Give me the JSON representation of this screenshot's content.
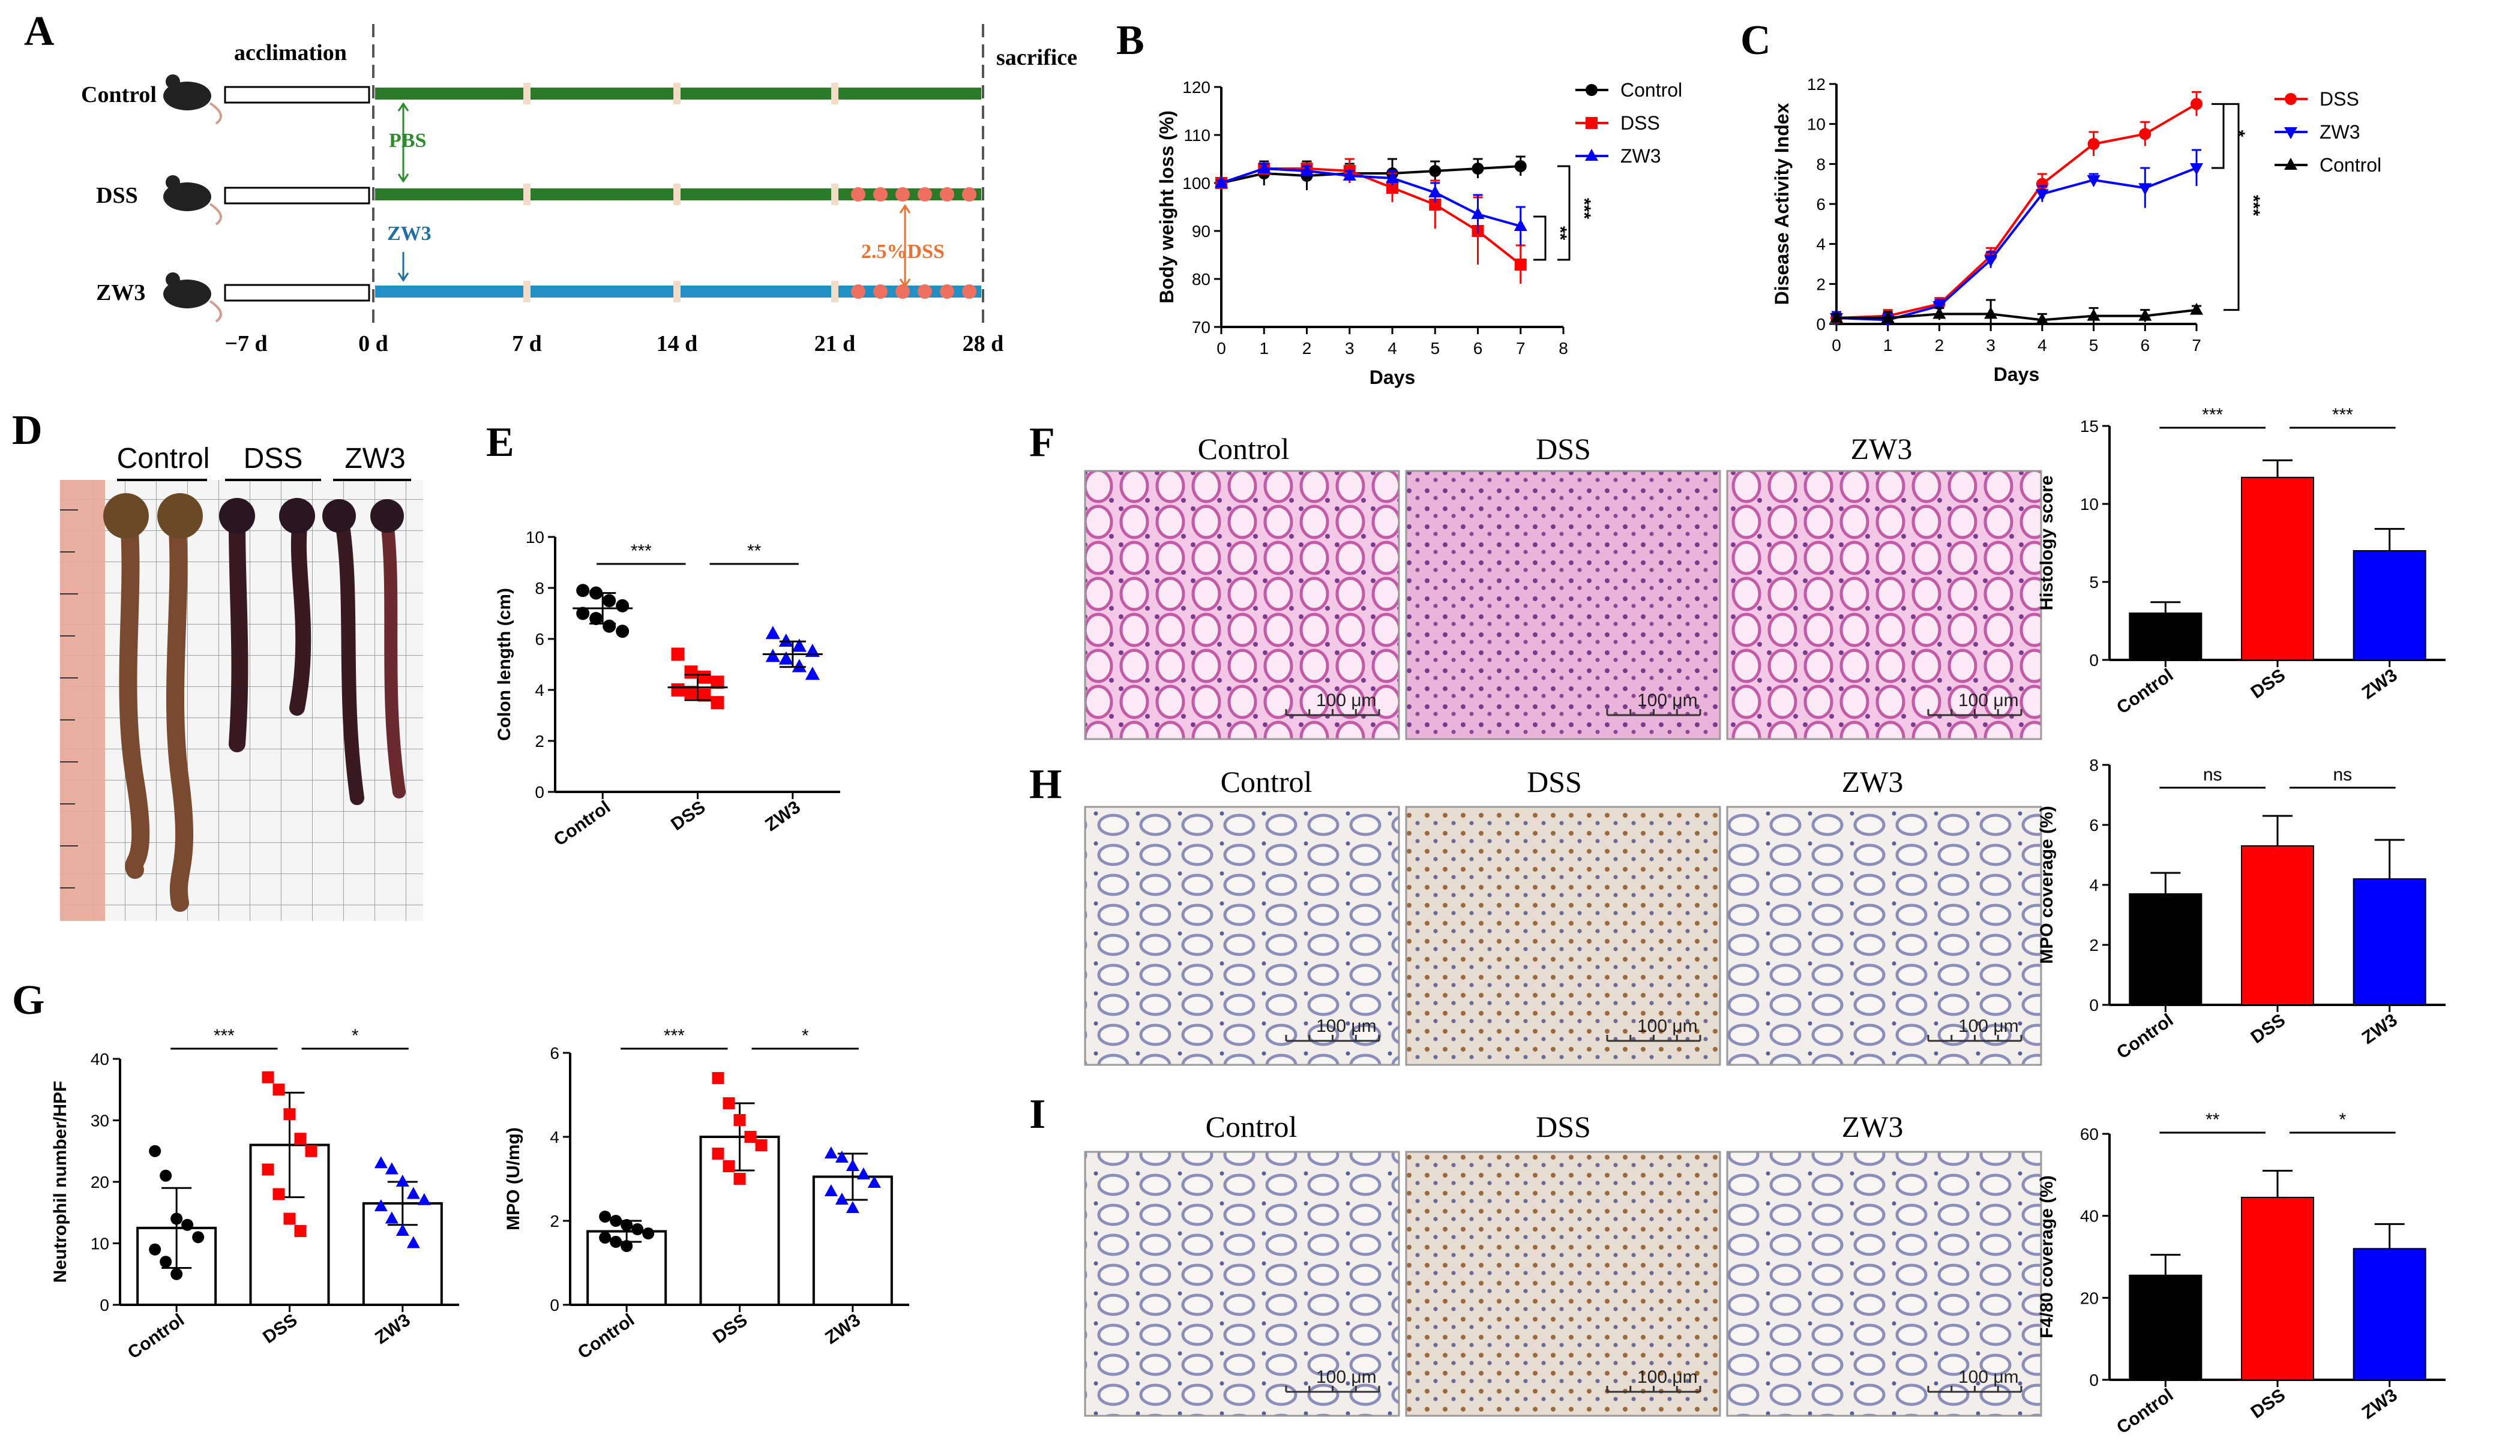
{
  "panel_labels": {
    "A": "A",
    "B": "B",
    "C": "C",
    "D": "D",
    "E": "E",
    "F": "F",
    "G": "G",
    "H": "H",
    "I": "I"
  },
  "colors": {
    "control": "#000000",
    "dss": "#ff0000",
    "zw3": "#0000ff",
    "pbs_green": "#2e8b2e",
    "zw3_blue": "#1f8fc4",
    "dss_orange": "#f07030",
    "timeline_green": "#2a7a2a",
    "timeline_blue": "#1f8fc4"
  },
  "schematic": {
    "rows": [
      {
        "label": "Control",
        "icon": "mouse-icon",
        "bar": "green"
      },
      {
        "label": "DSS",
        "icon": "mouse-icon",
        "bar": "green"
      },
      {
        "label": "ZW3",
        "icon": "mouse-icon",
        "bar": "blue"
      }
    ],
    "acclimation": "acclimation",
    "sacrifice": "sacrifice",
    "pbs": "PBS",
    "zw3": "ZW3",
    "dss": "2.5%DSS",
    "days": [
      "−7 d",
      "0 d",
      "7 d",
      "14 d",
      "21 d",
      "28 d"
    ]
  },
  "chart_data": [
    {
      "id": "B",
      "type": "line",
      "xlabel": "Days",
      "ylabel": "Body weight loss (%)",
      "xlim": [
        0,
        8
      ],
      "ylim": [
        70,
        120
      ],
      "xticks": [
        0,
        1,
        2,
        3,
        4,
        5,
        6,
        7,
        8
      ],
      "yticks": [
        70,
        80,
        90,
        100,
        110,
        120
      ],
      "series": [
        {
          "name": "Control",
          "color": "#000000",
          "marker": "circle",
          "x": [
            0,
            1,
            2,
            3,
            4,
            5,
            6,
            7
          ],
          "y": [
            100,
            102,
            101.5,
            102,
            102,
            102.5,
            103,
            103.5
          ],
          "err": [
            0.5,
            2.5,
            3,
            2,
            3,
            2,
            2,
            2
          ]
        },
        {
          "name": "DSS",
          "color": "#ff0000",
          "marker": "square",
          "x": [
            0,
            1,
            2,
            3,
            4,
            5,
            6,
            7
          ],
          "y": [
            100,
            103,
            103,
            102.5,
            99,
            95.5,
            90,
            83
          ],
          "err": [
            0.5,
            1,
            1,
            2.5,
            3,
            5,
            7,
            4
          ]
        },
        {
          "name": "ZW3",
          "color": "#0000ff",
          "marker": "triangle",
          "x": [
            0,
            1,
            2,
            3,
            4,
            5,
            6,
            7
          ],
          "y": [
            100,
            103,
            102.5,
            101.5,
            101,
            98,
            93.5,
            91
          ],
          "err": [
            0.5,
            1,
            1,
            1,
            1.5,
            2,
            4,
            4
          ]
        }
      ],
      "sig": [
        "**",
        "***"
      ]
    },
    {
      "id": "C",
      "type": "line",
      "xlabel": "Days",
      "ylabel": "Disease Activity Index",
      "xlim": [
        0,
        7
      ],
      "ylim": [
        0,
        12
      ],
      "xticks": [
        0,
        1,
        2,
        3,
        4,
        5,
        6,
        7
      ],
      "yticks": [
        0,
        2,
        4,
        6,
        8,
        10,
        12
      ],
      "series": [
        {
          "name": "DSS",
          "color": "#ff0000",
          "marker": "circle",
          "x": [
            0,
            1,
            2,
            3,
            4,
            5,
            6,
            7
          ],
          "y": [
            0.3,
            0.4,
            1,
            3.4,
            7,
            9,
            9.5,
            11
          ],
          "err": [
            0.3,
            0.3,
            0.3,
            0.4,
            0.5,
            0.6,
            0.6,
            0.6
          ]
        },
        {
          "name": "ZW3",
          "color": "#0000ff",
          "marker": "tridown",
          "x": [
            0,
            1,
            2,
            3,
            4,
            5,
            6,
            7
          ],
          "y": [
            0.3,
            0.2,
            0.9,
            3.2,
            6.5,
            7.2,
            6.8,
            7.8
          ],
          "err": [
            0.3,
            0.3,
            0.3,
            0.4,
            0.4,
            0.3,
            1,
            0.9
          ]
        },
        {
          "name": "Control",
          "color": "#000000",
          "marker": "triangle",
          "x": [
            0,
            1,
            2,
            3,
            4,
            5,
            6,
            7
          ],
          "y": [
            0.3,
            0.3,
            0.5,
            0.5,
            0.2,
            0.4,
            0.4,
            0.7
          ],
          "err": [
            0.2,
            0.3,
            0.3,
            0.7,
            0.3,
            0.4,
            0.3,
            0.2
          ]
        }
      ],
      "sig": [
        "*",
        "***"
      ]
    },
    {
      "id": "E",
      "type": "scatter",
      "ylabel": "Colon length (cm)",
      "ylim": [
        0,
        10
      ],
      "yticks": [
        0,
        2,
        4,
        6,
        8,
        10
      ],
      "categories": [
        "Control",
        "DSS",
        "ZW3"
      ],
      "groups": [
        {
          "name": "Control",
          "color": "#000000",
          "marker": "circle",
          "mean": 7.2,
          "sd": 0.6,
          "points": [
            7.9,
            7.8,
            7.5,
            7.3,
            7.0,
            6.8,
            6.5,
            6.3
          ]
        },
        {
          "name": "DSS",
          "color": "#ff0000",
          "marker": "square",
          "mean": 4.1,
          "sd": 0.5,
          "points": [
            5.4,
            4.7,
            4.5,
            4.3,
            4.0,
            3.9,
            3.8,
            3.5
          ]
        },
        {
          "name": "ZW3",
          "color": "#0000ff",
          "marker": "triangle",
          "mean": 5.4,
          "sd": 0.5,
          "points": [
            6.2,
            5.9,
            5.7,
            5.5,
            5.3,
            5.2,
            4.9,
            4.6
          ]
        }
      ],
      "sig": [
        {
          "from": 0,
          "to": 1,
          "text": "***"
        },
        {
          "from": 1,
          "to": 2,
          "text": "**"
        }
      ]
    },
    {
      "id": "F",
      "type": "bar",
      "ylabel": "Histology score",
      "ylim": [
        0,
        15
      ],
      "yticks": [
        0,
        5,
        10,
        15
      ],
      "categories": [
        "Control",
        "DSS",
        "ZW3"
      ],
      "values": [
        3,
        11.7,
        7
      ],
      "err": [
        0.7,
        1.1,
        1.4
      ],
      "colors": [
        "#000000",
        "#ff0000",
        "#0000ff"
      ],
      "sig": [
        {
          "from": 0,
          "to": 1,
          "text": "***"
        },
        {
          "from": 1,
          "to": 2,
          "text": "***"
        }
      ]
    },
    {
      "id": "H",
      "type": "bar",
      "ylabel": "MPO coverage (%)",
      "ylim": [
        0,
        8
      ],
      "yticks": [
        0,
        2,
        4,
        6,
        8
      ],
      "categories": [
        "Control",
        "DSS",
        "ZW3"
      ],
      "values": [
        3.7,
        5.3,
        4.2
      ],
      "err": [
        0.7,
        1.0,
        1.3
      ],
      "colors": [
        "#000000",
        "#ff0000",
        "#0000ff"
      ],
      "sig": [
        {
          "from": 0,
          "to": 1,
          "text": "ns"
        },
        {
          "from": 1,
          "to": 2,
          "text": "ns"
        }
      ]
    },
    {
      "id": "I",
      "type": "bar",
      "ylabel": "F4/80 coverage (%)",
      "ylim": [
        0,
        60
      ],
      "yticks": [
        0,
        20,
        40,
        60
      ],
      "categories": [
        "Control",
        "DSS",
        "ZW3"
      ],
      "values": [
        25.5,
        44.5,
        32
      ],
      "err": [
        5,
        6.5,
        6
      ],
      "colors": [
        "#000000",
        "#ff0000",
        "#0000ff"
      ],
      "sig": [
        {
          "from": 0,
          "to": 1,
          "text": "**"
        },
        {
          "from": 1,
          "to": 2,
          "text": "*"
        }
      ]
    },
    {
      "id": "G1",
      "type": "bar",
      "ylabel": "Neutrophil number/HPF",
      "ylim": [
        0,
        40
      ],
      "yticks": [
        0,
        10,
        20,
        30,
        40
      ],
      "categories": [
        "Control",
        "DSS",
        "ZW3"
      ],
      "values": [
        12.5,
        26,
        16.5
      ],
      "err": [
        6.5,
        8.5,
        3.5
      ],
      "colors": [
        "#ffffff",
        "#ffffff",
        "#ffffff"
      ],
      "point_colors": [
        "#000000",
        "#ff0000",
        "#0000ff"
      ],
      "markers": [
        "circle",
        "square",
        "triangle"
      ],
      "points": [
        [
          25,
          21,
          14,
          13,
          11,
          9,
          7,
          5
        ],
        [
          37,
          35,
          31,
          27,
          25,
          22,
          18,
          14,
          12
        ],
        [
          23,
          22,
          20,
          18,
          17,
          16,
          14,
          12,
          10
        ]
      ],
      "sig": [
        {
          "from": 0,
          "to": 1,
          "text": "***"
        },
        {
          "from": 1,
          "to": 2,
          "text": "*"
        }
      ]
    },
    {
      "id": "G2",
      "type": "bar",
      "ylabel": "MPO (U/mg)",
      "ylim": [
        0,
        6
      ],
      "yticks": [
        0,
        2,
        4,
        6
      ],
      "categories": [
        "Control",
        "DSS",
        "ZW3"
      ],
      "values": [
        1.75,
        4.0,
        3.05
      ],
      "err": [
        0.25,
        0.8,
        0.55
      ],
      "colors": [
        "#ffffff",
        "#ffffff",
        "#ffffff"
      ],
      "point_colors": [
        "#000000",
        "#ff0000",
        "#0000ff"
      ],
      "markers": [
        "circle",
        "square",
        "triangle"
      ],
      "points": [
        [
          2.1,
          2.0,
          1.9,
          1.8,
          1.7,
          1.6,
          1.5,
          1.4
        ],
        [
          5.4,
          4.8,
          4.4,
          4.0,
          3.8,
          3.6,
          3.3,
          3.0
        ],
        [
          3.6,
          3.5,
          3.3,
          3.1,
          2.9,
          2.7,
          2.5,
          2.3
        ]
      ],
      "sig": [
        {
          "from": 0,
          "to": 1,
          "text": "***"
        },
        {
          "from": 1,
          "to": 2,
          "text": "*"
        }
      ]
    }
  ],
  "photo_D": {
    "headers": [
      "Control",
      "DSS",
      "ZW3"
    ]
  },
  "micrographs": {
    "F": {
      "titles": [
        "Control",
        "DSS",
        "ZW3"
      ],
      "scale": "100 μm"
    },
    "H": {
      "titles": [
        "Control",
        "DSS",
        "ZW3"
      ],
      "scale": "100 μm"
    },
    "I": {
      "titles": [
        "Control",
        "DSS",
        "ZW3"
      ],
      "scale": "100 μm"
    }
  }
}
